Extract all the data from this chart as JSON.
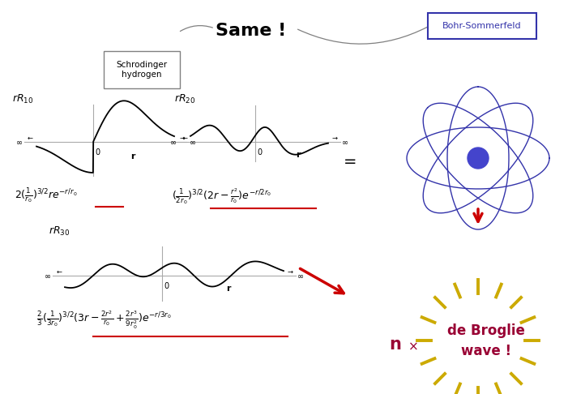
{
  "bg_color": "#ffffff",
  "schrodinger_box_text": "Schrodinger\nhydrogen",
  "bohr_box_text": "Bohr-Sommerfeld",
  "same_text": "Same !",
  "equal_text": "=",
  "down_arrow_color": "#cc0000",
  "orbit_color": "#3333aa",
  "nucleus_color": "#4444cc",
  "wave_text_color": "#990033",
  "sun_ray_color": "#ccaa00",
  "n_text": "n",
  "times_text": "×",
  "de_broglie_text": "de Broglie\nwave !",
  "underline_color": "#cc0000",
  "axis_color": "#aaaaaa",
  "wave_color": "#000000"
}
